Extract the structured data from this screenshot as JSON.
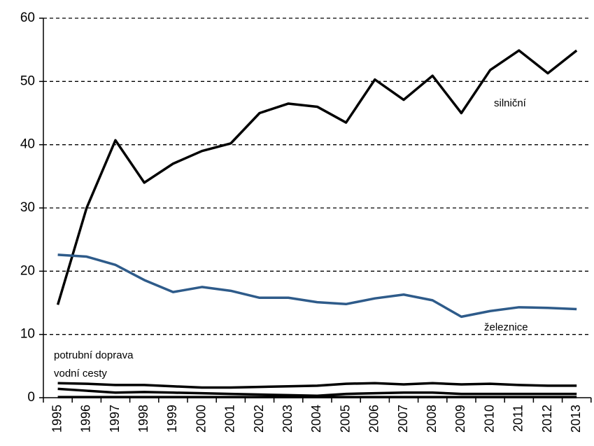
{
  "chart_data": {
    "type": "line",
    "categories": [
      "1995",
      "1996",
      "1997",
      "1998",
      "1999",
      "2000",
      "2001",
      "2002",
      "2003",
      "2004",
      "2005",
      "2006",
      "2007",
      "2008",
      "2009",
      "2010",
      "2011",
      "2012",
      "2013"
    ],
    "series": [
      {
        "name": "silniční",
        "color": "#000000",
        "values": [
          14.7,
          30.0,
          40.7,
          34.0,
          37.0,
          39.0,
          40.2,
          45.0,
          46.5,
          46.0,
          43.5,
          50.3,
          47.1,
          50.9,
          45.0,
          51.8,
          54.9,
          51.3,
          54.9
        ]
      },
      {
        "name": "železnice",
        "color": "#2e5b8a",
        "values": [
          22.6,
          22.3,
          21.0,
          18.6,
          16.7,
          17.5,
          16.9,
          15.8,
          15.8,
          15.1,
          14.8,
          15.7,
          16.3,
          15.4,
          12.8,
          13.7,
          14.3,
          14.2,
          14.0
        ]
      },
      {
        "name": "potrubní doprava",
        "color": "#000000",
        "values": [
          2.3,
          2.2,
          2.0,
          2.0,
          1.8,
          1.6,
          1.6,
          1.7,
          1.8,
          1.9,
          2.2,
          2.3,
          2.1,
          2.3,
          2.1,
          2.2,
          2.0,
          1.9,
          1.9
        ]
      },
      {
        "name": "vodní cesty",
        "color": "#000000",
        "values": [
          1.4,
          1.1,
          0.8,
          0.9,
          0.8,
          0.7,
          0.6,
          0.5,
          0.4,
          0.3,
          0.6,
          0.7,
          0.8,
          0.8,
          0.6,
          0.6,
          0.6,
          0.6,
          0.6
        ]
      },
      {
        "color": "#000000",
        "values": [
          0.1,
          0.1,
          0.1,
          0.1,
          0.1,
          0.1,
          0.1,
          0.1,
          0.1,
          0.1,
          0.1,
          0.1,
          0.1,
          0.1,
          0.1,
          0.1,
          0.1,
          0.1,
          0.1
        ]
      }
    ],
    "ylim": [
      0,
      60
    ],
    "yticks": [
      0,
      10,
      20,
      30,
      40,
      50,
      60
    ],
    "grid": true
  }
}
